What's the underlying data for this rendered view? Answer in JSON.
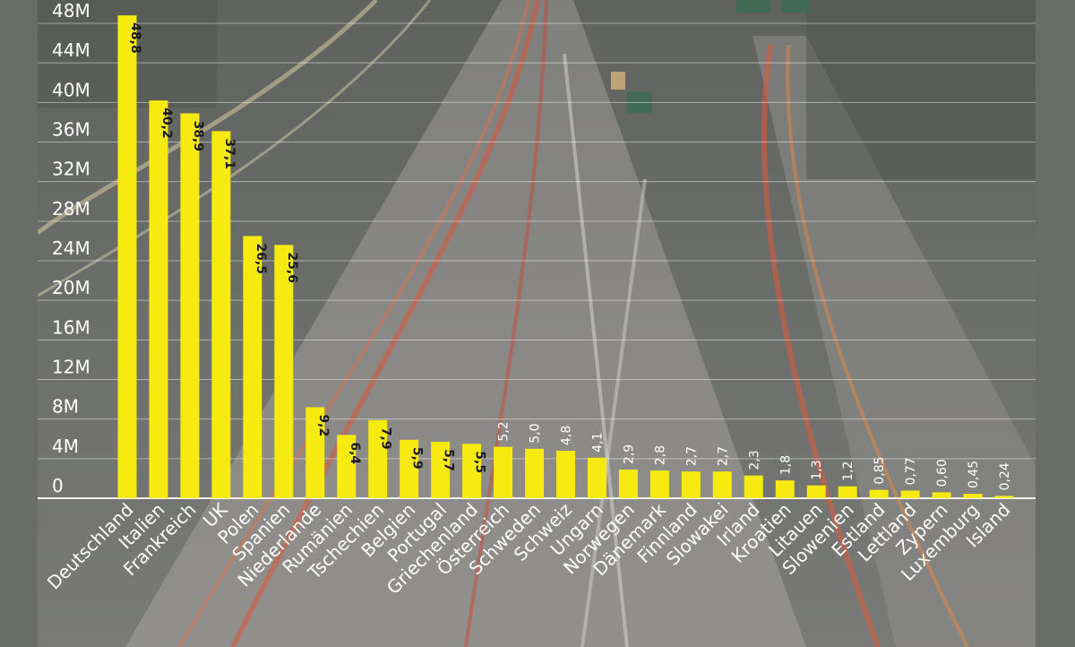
{
  "chart_data": {
    "type": "bar",
    "title": "",
    "xlabel": "",
    "ylabel": "",
    "ylim": [
      0,
      48000000
    ],
    "y_ticks": [
      0,
      4000000,
      8000000,
      12000000,
      16000000,
      20000000,
      24000000,
      28000000,
      32000000,
      36000000,
      40000000,
      44000000,
      48000000
    ],
    "y_tick_labels": [
      "0",
      "4M",
      "8M",
      "12M",
      "16M",
      "20M",
      "24M",
      "28M",
      "32M",
      "36M",
      "40M",
      "44M",
      "48M"
    ],
    "grid": true,
    "legend": "none",
    "bar_color": "#f7ea10",
    "label_dark_color": "#1a1a1a",
    "label_light_color": "#ffffff",
    "categories": [
      "Deutschland",
      "Italien",
      "Frankreich",
      "UK",
      "Polen",
      "Spanien",
      "Niederlande",
      "Rumänien",
      "Tschechien",
      "Belgien",
      "Portugal",
      "Griechenland",
      "Österreich",
      "Schweden",
      "Schweiz",
      "Ungarn",
      "Norwegen",
      "Dänemark",
      "Finnland",
      "Slowakei",
      "Irland",
      "Kroatien",
      "Litauen",
      "Slowenien",
      "Estland",
      "Lettland",
      "Zypern",
      "Luxemburg",
      "Island"
    ],
    "values": [
      48.8,
      40.2,
      38.9,
      37.1,
      26.5,
      25.6,
      9.2,
      6.4,
      7.9,
      5.9,
      5.7,
      5.5,
      5.2,
      5.0,
      4.8,
      4.1,
      2.9,
      2.8,
      2.7,
      2.7,
      2.3,
      1.8,
      1.3,
      1.2,
      0.85,
      0.77,
      0.6,
      0.45,
      0.24
    ],
    "value_labels": [
      "48,8",
      "40,2",
      "38,9",
      "37,1",
      "26,5",
      "25,6",
      "9,2",
      "6,4",
      "7,9",
      "5,9",
      "5,7",
      "5,5",
      "5,2",
      "5,0",
      "4,8",
      "4,1",
      "2,9",
      "2,8",
      "2,7",
      "2,7",
      "2,3",
      "1,8",
      "1,3",
      "1,2",
      "0,85",
      "0,77",
      "0,60",
      "0,45",
      "0,24"
    ]
  }
}
